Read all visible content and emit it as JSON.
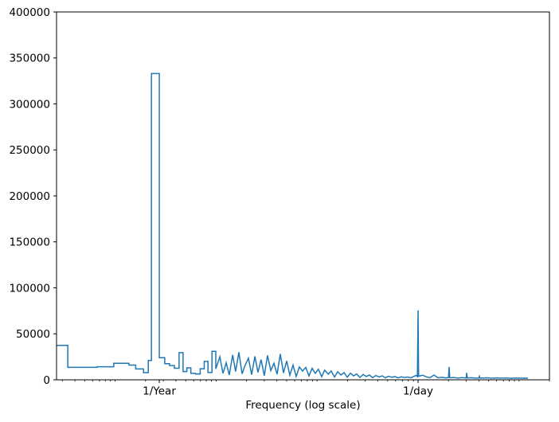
{
  "figure": {
    "background": "#ffffff"
  },
  "chart_data": {
    "type": "line",
    "title": "",
    "xlabel": "Frequency (log scale)",
    "ylabel": "",
    "x_scale": "log",
    "xlim": [
      0.000263,
      20
    ],
    "ylim": [
      0,
      400000
    ],
    "grid": false,
    "legend": null,
    "line_color": "#1f77b4",
    "axis_color": "#000000",
    "x_ticks": [
      {
        "value": 0.0027379,
        "label": "1/Year"
      },
      {
        "value": 1,
        "label": "1/day"
      }
    ],
    "y_ticks": [
      {
        "value": 0,
        "label": "0"
      },
      {
        "value": 50000,
        "label": "50000"
      },
      {
        "value": 100000,
        "label": "100000"
      },
      {
        "value": 150000,
        "label": "150000"
      },
      {
        "value": 200000,
        "label": "200000"
      },
      {
        "value": 250000,
        "label": "250000"
      },
      {
        "value": 300000,
        "label": "300000"
      },
      {
        "value": 350000,
        "label": "350000"
      },
      {
        "value": 400000,
        "label": "400000"
      }
    ],
    "peaks": [
      {
        "at": "1/Year",
        "frequency": 0.0027379,
        "power": 333000
      },
      {
        "at": "1/day",
        "frequency": 1.0,
        "power": 75500
      },
      {
        "at": "2/day",
        "frequency": 2.03,
        "power": 14000
      },
      {
        "at": "3/day",
        "frequency": 3.03,
        "power": 7500
      }
    ],
    "series": [
      {
        "name": "power-spectrum",
        "points": [
          [
            0.000263,
            37500
          ],
          [
            0.00034,
            37500
          ],
          [
            0.00034,
            13500
          ],
          [
            0.00066,
            13500
          ],
          [
            0.00066,
            14200
          ],
          [
            0.00097,
            14200
          ],
          [
            0.00097,
            18000
          ],
          [
            0.00137,
            18000
          ],
          [
            0.00137,
            16000
          ],
          [
            0.0016,
            16000
          ],
          [
            0.0016,
            11800
          ],
          [
            0.00191,
            11800
          ],
          [
            0.00191,
            7800
          ],
          [
            0.00213,
            7800
          ],
          [
            0.00213,
            21000
          ],
          [
            0.00229,
            21000
          ],
          [
            0.00229,
            333000
          ],
          [
            0.00274,
            333000
          ],
          [
            0.00274,
            24000
          ],
          [
            0.0031,
            24000
          ],
          [
            0.0031,
            17500
          ],
          [
            0.00346,
            17500
          ],
          [
            0.00346,
            15500
          ],
          [
            0.00386,
            15500
          ],
          [
            0.00386,
            12500
          ],
          [
            0.0043,
            12500
          ],
          [
            0.0043,
            29500
          ],
          [
            0.00471,
            29500
          ],
          [
            0.00471,
            9000
          ],
          [
            0.00513,
            9000
          ],
          [
            0.00513,
            13000
          ],
          [
            0.00562,
            13000
          ],
          [
            0.00562,
            7000
          ],
          [
            0.00625,
            7000
          ],
          [
            0.00625,
            6300
          ],
          [
            0.00696,
            6300
          ],
          [
            0.00696,
            12000
          ],
          [
            0.00763,
            12000
          ],
          [
            0.00763,
            20000
          ],
          [
            0.00831,
            20000
          ],
          [
            0.00831,
            8000
          ],
          [
            0.0091,
            8000
          ],
          [
            0.0091,
            31000
          ],
          [
            0.00993,
            31000
          ],
          [
            0.00993,
            12000
          ],
          [
            0.0109,
            25000
          ],
          [
            0.0117,
            7000
          ],
          [
            0.0126,
            18500
          ],
          [
            0.0135,
            5200
          ],
          [
            0.0146,
            27000
          ],
          [
            0.0156,
            9000
          ],
          [
            0.0168,
            30000
          ],
          [
            0.0181,
            6500
          ],
          [
            0.0194,
            16000
          ],
          [
            0.0209,
            23500
          ],
          [
            0.0225,
            5500
          ],
          [
            0.0242,
            25500
          ],
          [
            0.026,
            8000
          ],
          [
            0.0279,
            22000
          ],
          [
            0.03,
            4500
          ],
          [
            0.0323,
            26500
          ],
          [
            0.0348,
            10000
          ],
          [
            0.0374,
            18000
          ],
          [
            0.0402,
            6000
          ],
          [
            0.0432,
            28000
          ],
          [
            0.0465,
            7500
          ],
          [
            0.05,
            20500
          ],
          [
            0.0537,
            5000
          ],
          [
            0.0578,
            16000
          ],
          [
            0.0621,
            3600
          ],
          [
            0.0668,
            14000
          ],
          [
            0.0718,
            9500
          ],
          [
            0.0773,
            13500
          ],
          [
            0.0831,
            4200
          ],
          [
            0.0894,
            12500
          ],
          [
            0.0961,
            7000
          ],
          [
            0.103,
            11500
          ],
          [
            0.111,
            3400
          ],
          [
            0.119,
            10500
          ],
          [
            0.129,
            6200
          ],
          [
            0.138,
            9500
          ],
          [
            0.149,
            3000
          ],
          [
            0.16,
            8800
          ],
          [
            0.172,
            5200
          ],
          [
            0.185,
            7800
          ],
          [
            0.199,
            2800
          ],
          [
            0.214,
            7200
          ],
          [
            0.23,
            4300
          ],
          [
            0.247,
            6300
          ],
          [
            0.266,
            2500
          ],
          [
            0.286,
            5800
          ],
          [
            0.307,
            3600
          ],
          [
            0.33,
            5200
          ],
          [
            0.355,
            2300
          ],
          [
            0.382,
            4700
          ],
          [
            0.411,
            3100
          ],
          [
            0.442,
            4300
          ],
          [
            0.475,
            2200
          ],
          [
            0.511,
            3900
          ],
          [
            0.55,
            2700
          ],
          [
            0.59,
            3500
          ],
          [
            0.635,
            2100
          ],
          [
            0.682,
            3200
          ],
          [
            0.735,
            2500
          ],
          [
            0.789,
            3000
          ],
          [
            0.849,
            2200
          ],
          [
            0.914,
            3800
          ],
          [
            0.955,
            4800
          ],
          [
            0.985,
            3500
          ],
          [
            1.0,
            75500
          ],
          [
            1.012,
            3800
          ],
          [
            1.037,
            4200
          ],
          [
            1.115,
            5000
          ],
          [
            1.199,
            3300
          ],
          [
            1.313,
            2300
          ],
          [
            1.438,
            5200
          ],
          [
            1.574,
            2200
          ],
          [
            1.725,
            2700
          ],
          [
            1.888,
            2100
          ],
          [
            2.0,
            2300
          ],
          [
            2.03,
            14000
          ],
          [
            2.06,
            2200
          ],
          [
            2.26,
            2500
          ],
          [
            2.48,
            1900
          ],
          [
            2.71,
            2400
          ],
          [
            3.0,
            2000
          ],
          [
            3.03,
            7500
          ],
          [
            3.07,
            2100
          ],
          [
            3.38,
            2300
          ],
          [
            3.7,
            1800
          ],
          [
            4.0,
            1900
          ],
          [
            4.05,
            3800
          ],
          [
            4.1,
            2000
          ],
          [
            4.43,
            2000
          ],
          [
            4.85,
            2200
          ],
          [
            5.41,
            1700
          ],
          [
            6.04,
            2100
          ],
          [
            6.73,
            1800
          ],
          [
            7.5,
            2000
          ],
          [
            8.37,
            1600
          ],
          [
            9.33,
            1900
          ],
          [
            10.4,
            1700
          ],
          [
            11.4,
            1800
          ],
          [
            12.25,
            1600
          ]
        ]
      }
    ]
  }
}
